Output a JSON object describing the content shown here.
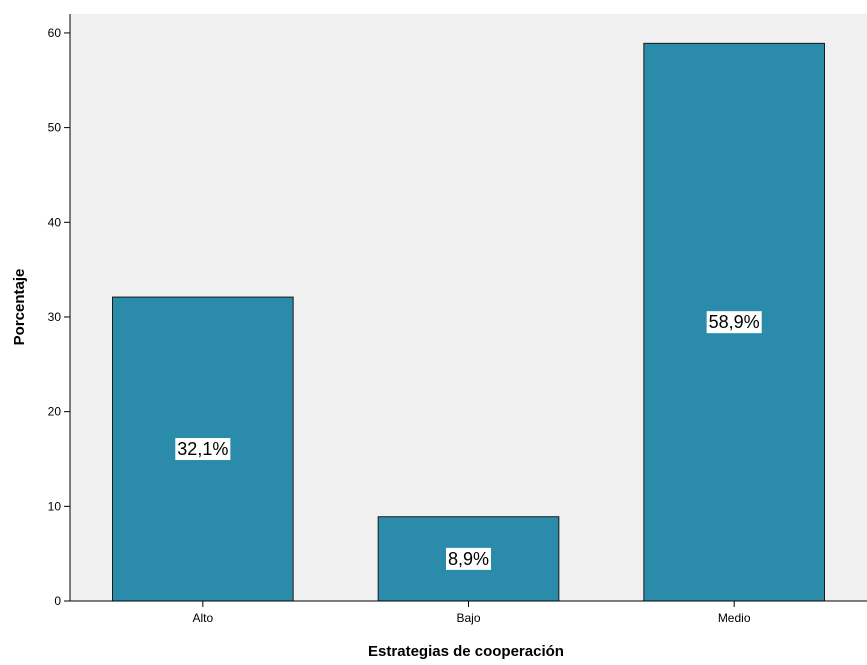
{
  "chart_data": {
    "type": "bar",
    "categories": [
      "Alto",
      "Bajo",
      "Medio"
    ],
    "values": [
      32.1,
      8.9,
      58.9
    ],
    "data_labels": [
      "32,1%",
      "8,9%",
      "58,9%"
    ],
    "xlabel": "Estrategias de cooperación",
    "ylabel": "Porcentaje",
    "ylim": [
      0,
      62
    ],
    "yticks": [
      0,
      10,
      20,
      30,
      40,
      50,
      60
    ],
    "grid": false,
    "legend": "none",
    "colors": {
      "bar_fill": "#2a8bab",
      "bar_stroke": "#1a1a1a",
      "plot_background": "#f0f0f0"
    }
  }
}
